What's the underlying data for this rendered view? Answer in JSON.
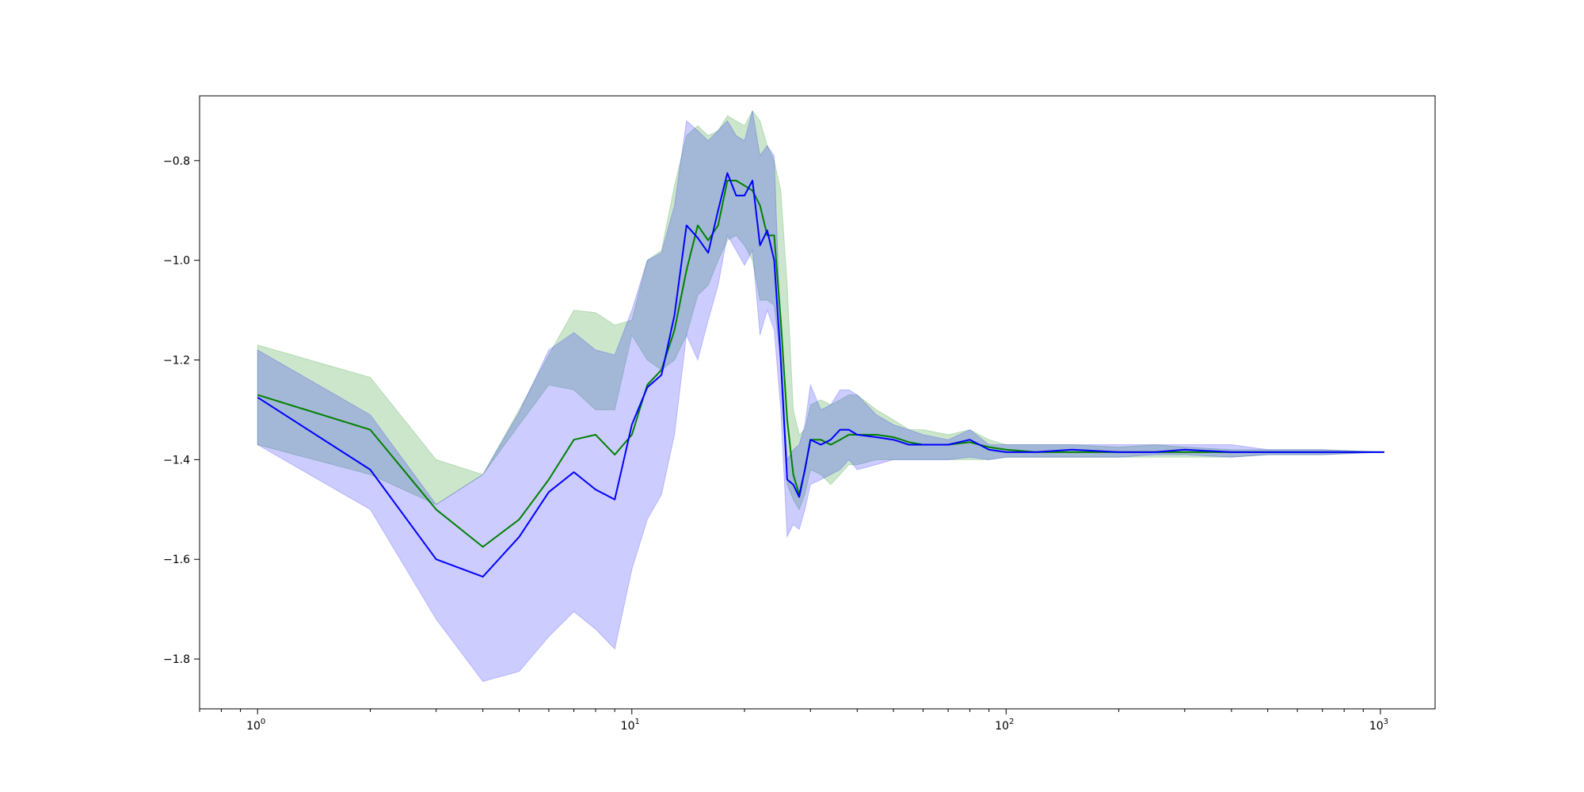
{
  "chart_data": {
    "type": "line",
    "title": "",
    "xlabel": "",
    "ylabel": "",
    "xscale": "log",
    "xlim": [
      0.7,
      1400
    ],
    "ylim": [
      -1.9,
      -0.67
    ],
    "grid": false,
    "legend": "none",
    "x_ticks": [
      {
        "value": 1,
        "label": "10",
        "exp": "0"
      },
      {
        "value": 10,
        "label": "10",
        "exp": "1"
      },
      {
        "value": 100,
        "label": "10",
        "exp": "2"
      },
      {
        "value": 1000,
        "label": "10",
        "exp": "3"
      }
    ],
    "y_ticks": [
      {
        "value": -0.8,
        "label": "−0.8"
      },
      {
        "value": -1.0,
        "label": "−1.0"
      },
      {
        "value": -1.2,
        "label": "−1.2"
      },
      {
        "value": -1.4,
        "label": "−1.4"
      },
      {
        "value": -1.6,
        "label": "−1.6"
      },
      {
        "value": -1.8,
        "label": "−1.8"
      }
    ],
    "series": [
      {
        "color": "#008000",
        "band_color": "#008000",
        "band_opacity": 0.2,
        "x": [
          1,
          2,
          3,
          4,
          5,
          6,
          7,
          8,
          9,
          10,
          11,
          12,
          13,
          14,
          15,
          16,
          17,
          18,
          19,
          20,
          21,
          22,
          23,
          24,
          25,
          26,
          27,
          28,
          29,
          30,
          32,
          34,
          36,
          38,
          40,
          45,
          50,
          55,
          60,
          70,
          80,
          90,
          100,
          120,
          150,
          200,
          250,
          300,
          400,
          500,
          700,
          1024
        ],
        "y": [
          -1.27,
          -1.34,
          -1.5,
          -1.575,
          -1.52,
          -1.44,
          -1.36,
          -1.35,
          -1.39,
          -1.35,
          -1.25,
          -1.22,
          -1.14,
          -1.02,
          -0.93,
          -0.96,
          -0.93,
          -0.84,
          -0.84,
          -0.85,
          -0.86,
          -0.89,
          -0.95,
          -0.95,
          -1.12,
          -1.32,
          -1.43,
          -1.47,
          -1.42,
          -1.36,
          -1.36,
          -1.37,
          -1.36,
          -1.35,
          -1.35,
          -1.35,
          -1.355,
          -1.365,
          -1.37,
          -1.37,
          -1.365,
          -1.375,
          -1.38,
          -1.385,
          -1.385,
          -1.385,
          -1.385,
          -1.385,
          -1.385,
          -1.385,
          -1.385,
          -1.385
        ],
        "lower": [
          -1.37,
          -1.43,
          -1.49,
          -1.43,
          -1.33,
          -1.25,
          -1.26,
          -1.3,
          -1.3,
          -1.15,
          -1.2,
          -1.22,
          -1.2,
          -1.15,
          -1.07,
          -1.05,
          -1.0,
          -0.96,
          -0.95,
          -0.97,
          -1.0,
          -1.08,
          -1.08,
          -1.09,
          -1.2,
          -1.45,
          -1.48,
          -1.5,
          -1.47,
          -1.42,
          -1.43,
          -1.45,
          -1.43,
          -1.41,
          -1.41,
          -1.4,
          -1.4,
          -1.4,
          -1.4,
          -1.4,
          -1.4,
          -1.4,
          -1.395,
          -1.395,
          -1.395,
          -1.395,
          -1.395,
          -1.395,
          -1.395,
          -1.39,
          -1.39,
          -1.385
        ],
        "upper": [
          -1.17,
          -1.235,
          -1.4,
          -1.43,
          -1.3,
          -1.19,
          -1.1,
          -1.105,
          -1.13,
          -1.12,
          -1.0,
          -0.98,
          -0.85,
          -0.75,
          -0.73,
          -0.75,
          -0.74,
          -0.71,
          -0.72,
          -0.73,
          -0.7,
          -0.72,
          -0.77,
          -0.8,
          -0.86,
          -1.05,
          -1.3,
          -1.35,
          -1.34,
          -1.29,
          -1.28,
          -1.29,
          -1.28,
          -1.27,
          -1.27,
          -1.3,
          -1.32,
          -1.34,
          -1.34,
          -1.35,
          -1.34,
          -1.36,
          -1.37,
          -1.37,
          -1.37,
          -1.375,
          -1.37,
          -1.375,
          -1.38,
          -1.38,
          -1.38,
          -1.385
        ]
      },
      {
        "color": "#0000ff",
        "band_color": "#0000ff",
        "band_opacity": 0.2,
        "x": [
          1,
          2,
          3,
          4,
          5,
          6,
          7,
          8,
          9,
          10,
          11,
          12,
          13,
          14,
          15,
          16,
          17,
          18,
          19,
          20,
          21,
          22,
          23,
          24,
          25,
          26,
          27,
          28,
          29,
          30,
          32,
          34,
          36,
          38,
          40,
          45,
          50,
          55,
          60,
          70,
          80,
          90,
          100,
          120,
          150,
          200,
          250,
          300,
          400,
          500,
          700,
          1024
        ],
        "y": [
          -1.275,
          -1.42,
          -1.6,
          -1.635,
          -1.555,
          -1.465,
          -1.425,
          -1.46,
          -1.48,
          -1.33,
          -1.255,
          -1.23,
          -1.11,
          -0.93,
          -0.955,
          -0.985,
          -0.9,
          -0.825,
          -0.87,
          -0.87,
          -0.84,
          -0.97,
          -0.94,
          -1.0,
          -1.2,
          -1.44,
          -1.45,
          -1.475,
          -1.42,
          -1.36,
          -1.37,
          -1.36,
          -1.34,
          -1.34,
          -1.35,
          -1.355,
          -1.36,
          -1.37,
          -1.37,
          -1.37,
          -1.36,
          -1.38,
          -1.385,
          -1.385,
          -1.38,
          -1.385,
          -1.385,
          -1.38,
          -1.385,
          -1.385,
          -1.385,
          -1.385
        ],
        "lower": [
          -1.37,
          -1.5,
          -1.72,
          -1.845,
          -1.825,
          -1.755,
          -1.705,
          -1.74,
          -1.78,
          -1.62,
          -1.52,
          -1.47,
          -1.35,
          -1.15,
          -1.2,
          -1.12,
          -1.05,
          -0.95,
          -0.98,
          -1.01,
          -0.98,
          -1.15,
          -1.1,
          -1.14,
          -1.3,
          -1.555,
          -1.53,
          -1.54,
          -1.5,
          -1.45,
          -1.44,
          -1.43,
          -1.42,
          -1.4,
          -1.42,
          -1.41,
          -1.4,
          -1.4,
          -1.4,
          -1.4,
          -1.395,
          -1.4,
          -1.395,
          -1.395,
          -1.395,
          -1.395,
          -1.39,
          -1.39,
          -1.395,
          -1.39,
          -1.39,
          -1.385
        ],
        "upper": [
          -1.18,
          -1.31,
          -1.49,
          -1.43,
          -1.305,
          -1.18,
          -1.145,
          -1.18,
          -1.19,
          -1.1,
          -1.0,
          -0.985,
          -0.89,
          -0.72,
          -0.74,
          -0.76,
          -0.74,
          -0.72,
          -0.75,
          -0.76,
          -0.7,
          -0.79,
          -0.77,
          -0.79,
          -1.16,
          -1.4,
          -1.38,
          -1.37,
          -1.33,
          -1.25,
          -1.3,
          -1.29,
          -1.26,
          -1.26,
          -1.27,
          -1.31,
          -1.33,
          -1.34,
          -1.35,
          -1.36,
          -1.34,
          -1.37,
          -1.37,
          -1.37,
          -1.37,
          -1.37,
          -1.37,
          -1.37,
          -1.37,
          -1.38,
          -1.38,
          -1.385
        ]
      }
    ]
  }
}
